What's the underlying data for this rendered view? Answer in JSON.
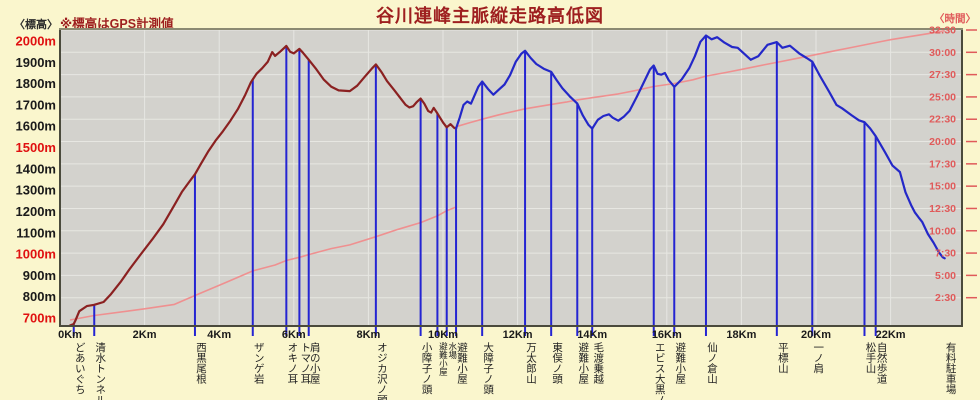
{
  "header": {
    "title": "谷川連峰主脈縦走路高低図",
    "elev_axis_label": "〈標高〉",
    "elev_note": "※標高はGPS計測値",
    "time_axis_label": "〈時間〉"
  },
  "colors": {
    "page_bg": "#FAF6CD",
    "plot_bg": "#D3D2CD",
    "grid": "#E7E7E2",
    "border": "#4A4A3C",
    "border_top": "#8B8A72",
    "title": "#9E1F1F",
    "elev_label_red": "#E01010",
    "elev_label_black": "#1A1A1A",
    "time_label": "#E05A5A",
    "day1_line": "#8B2121",
    "day2_line": "#2428C8",
    "marker_line": "#2424D2",
    "time_line": "#EF9090",
    "station_label": "#222222",
    "x_tick_label": "#1A1A1A"
  },
  "chart_data": {
    "type": "line",
    "title": "谷川連峰主脈縦走路高低図",
    "x_axis": {
      "unit": "Km",
      "tick_labels": [
        "0Km",
        "2Km",
        "4Km",
        "6Km",
        "8Km",
        "10Km",
        "12Km",
        "14Km",
        "16Km",
        "18Km",
        "20Km",
        "22Km"
      ],
      "tick_km": [
        0,
        2,
        4,
        6,
        8,
        10,
        12,
        14,
        16,
        18,
        20,
        22
      ],
      "km_max": 23.5
    },
    "elev_axis": {
      "side": "left",
      "unit": "m",
      "min": 700,
      "max": 2000,
      "step": 100,
      "red_values": [
        700,
        1000,
        1500,
        2000
      ]
    },
    "time_axis": {
      "side": "right",
      "tick_labels": [
        "2:30",
        "5:00",
        "7:30",
        "10:00",
        "12:30",
        "15:00",
        "17:30",
        "20:00",
        "22:30",
        "25:00",
        "27:30",
        "30:00",
        "32:30"
      ],
      "tick_minutes": [
        150,
        300,
        450,
        600,
        750,
        900,
        1050,
        1200,
        1350,
        1500,
        1650,
        1800,
        1950
      ]
    },
    "grid": true,
    "series": [
      {
        "name": "elevation-day1",
        "axis": "elev",
        "points": [
          [
            0,
            665
          ],
          [
            0.1,
            672
          ],
          [
            0.15,
            690
          ],
          [
            0.25,
            732
          ],
          [
            0.45,
            756
          ],
          [
            0.65,
            762
          ],
          [
            0.9,
            775
          ],
          [
            1.1,
            812
          ],
          [
            1.35,
            868
          ],
          [
            1.6,
            930
          ],
          [
            1.9,
            1000
          ],
          [
            2.2,
            1068
          ],
          [
            2.5,
            1140
          ],
          [
            2.8,
            1230
          ],
          [
            3.0,
            1292
          ],
          [
            3.2,
            1340
          ],
          [
            3.35,
            1375
          ],
          [
            3.5,
            1420
          ],
          [
            3.7,
            1480
          ],
          [
            3.9,
            1532
          ],
          [
            4.1,
            1576
          ],
          [
            4.3,
            1626
          ],
          [
            4.5,
            1680
          ],
          [
            4.7,
            1748
          ],
          [
            4.85,
            1806
          ],
          [
            4.9,
            1820
          ],
          [
            5.0,
            1846
          ],
          [
            5.15,
            1872
          ],
          [
            5.3,
            1902
          ],
          [
            5.42,
            1948
          ],
          [
            5.5,
            1930
          ],
          [
            5.65,
            1952
          ],
          [
            5.8,
            1977
          ],
          [
            5.9,
            1950
          ],
          [
            6.0,
            1942
          ],
          [
            6.15,
            1963
          ],
          [
            6.25,
            1944
          ],
          [
            6.4,
            1912
          ],
          [
            6.6,
            1868
          ],
          [
            6.8,
            1820
          ],
          [
            7.0,
            1786
          ],
          [
            7.2,
            1768
          ],
          [
            7.5,
            1765
          ],
          [
            7.7,
            1790
          ],
          [
            7.9,
            1832
          ],
          [
            8.1,
            1872
          ],
          [
            8.2,
            1890
          ],
          [
            8.35,
            1854
          ],
          [
            8.5,
            1812
          ],
          [
            8.7,
            1768
          ],
          [
            8.9,
            1722
          ],
          [
            9.0,
            1700
          ],
          [
            9.1,
            1688
          ],
          [
            9.2,
            1694
          ],
          [
            9.3,
            1714
          ],
          [
            9.4,
            1730
          ],
          [
            9.5,
            1706
          ],
          [
            9.6,
            1672
          ],
          [
            9.68,
            1664
          ],
          [
            9.75,
            1686
          ],
          [
            9.85,
            1660
          ],
          [
            10.0,
            1618
          ],
          [
            10.1,
            1595
          ],
          [
            10.2,
            1610
          ],
          [
            10.3,
            1592
          ],
          [
            10.35,
            1590
          ]
        ]
      },
      {
        "name": "elevation-day2",
        "axis": "elev",
        "points": [
          [
            10.35,
            1590
          ],
          [
            10.45,
            1642
          ],
          [
            10.55,
            1700
          ],
          [
            10.65,
            1716
          ],
          [
            10.75,
            1706
          ],
          [
            10.85,
            1746
          ],
          [
            10.95,
            1786
          ],
          [
            11.05,
            1810
          ],
          [
            11.2,
            1776
          ],
          [
            11.35,
            1748
          ],
          [
            11.5,
            1772
          ],
          [
            11.65,
            1796
          ],
          [
            11.8,
            1840
          ],
          [
            11.95,
            1902
          ],
          [
            12.1,
            1940
          ],
          [
            12.2,
            1954
          ],
          [
            12.35,
            1920
          ],
          [
            12.5,
            1892
          ],
          [
            12.7,
            1870
          ],
          [
            12.9,
            1855
          ],
          [
            13.05,
            1815
          ],
          [
            13.2,
            1778
          ],
          [
            13.4,
            1740
          ],
          [
            13.6,
            1706
          ],
          [
            13.75,
            1650
          ],
          [
            13.9,
            1606
          ],
          [
            14.0,
            1589
          ],
          [
            14.15,
            1630
          ],
          [
            14.3,
            1648
          ],
          [
            14.45,
            1656
          ],
          [
            14.55,
            1640
          ],
          [
            14.7,
            1626
          ],
          [
            14.85,
            1645
          ],
          [
            15.0,
            1672
          ],
          [
            15.2,
            1740
          ],
          [
            15.4,
            1812
          ],
          [
            15.55,
            1866
          ],
          [
            15.65,
            1885
          ],
          [
            15.75,
            1846
          ],
          [
            15.85,
            1842
          ],
          [
            15.95,
            1850
          ],
          [
            16.05,
            1816
          ],
          [
            16.2,
            1785
          ],
          [
            16.4,
            1820
          ],
          [
            16.6,
            1872
          ],
          [
            16.75,
            1928
          ],
          [
            16.9,
            1996
          ],
          [
            17.05,
            2026
          ],
          [
            17.2,
            2008
          ],
          [
            17.35,
            2018
          ],
          [
            17.55,
            1992
          ],
          [
            17.75,
            1972
          ],
          [
            17.9,
            1968
          ],
          [
            18.1,
            1936
          ],
          [
            18.25,
            1912
          ],
          [
            18.45,
            1928
          ],
          [
            18.7,
            1982
          ],
          [
            18.95,
            1995
          ],
          [
            19.1,
            1968
          ],
          [
            19.3,
            1978
          ],
          [
            19.55,
            1942
          ],
          [
            19.75,
            1920
          ],
          [
            19.9,
            1903
          ],
          [
            20.1,
            1838
          ],
          [
            20.35,
            1762
          ],
          [
            20.55,
            1700
          ],
          [
            20.7,
            1684
          ],
          [
            20.95,
            1652
          ],
          [
            21.15,
            1628
          ],
          [
            21.3,
            1619
          ],
          [
            21.45,
            1590
          ],
          [
            21.6,
            1553
          ],
          [
            21.85,
            1478
          ],
          [
            22.05,
            1415
          ],
          [
            22.25,
            1385
          ],
          [
            22.4,
            1290
          ],
          [
            22.55,
            1230
          ],
          [
            22.65,
            1196
          ],
          [
            22.75,
            1172
          ],
          [
            22.85,
            1150
          ],
          [
            23.0,
            1094
          ],
          [
            23.15,
            1054
          ],
          [
            23.3,
            1007
          ],
          [
            23.4,
            985
          ],
          [
            23.45,
            980
          ]
        ]
      },
      {
        "name": "elapsed-time",
        "axis": "time",
        "points": [
          [
            0,
            0
          ],
          [
            0.65,
            30
          ],
          [
            2,
            75
          ],
          [
            2.8,
            105
          ],
          [
            3.35,
            165
          ],
          [
            4.2,
            255
          ],
          [
            4.9,
            330
          ],
          [
            5.5,
            370
          ],
          [
            5.8,
            400
          ],
          [
            6.2,
            425
          ],
          [
            6.4,
            440
          ],
          [
            7.0,
            480
          ],
          [
            7.5,
            505
          ],
          [
            8.2,
            560
          ],
          [
            8.8,
            610
          ],
          [
            9.4,
            655
          ],
          [
            9.85,
            700
          ],
          [
            10.1,
            735
          ],
          [
            10.35,
            760
          ],
          [
            10.35,
            1300
          ],
          [
            10.7,
            1325
          ],
          [
            11.05,
            1350
          ],
          [
            11.5,
            1380
          ],
          [
            12.2,
            1420
          ],
          [
            12.9,
            1450
          ],
          [
            13.3,
            1465
          ],
          [
            13.6,
            1480
          ],
          [
            14.0,
            1495
          ],
          [
            14.7,
            1520
          ],
          [
            15.2,
            1545
          ],
          [
            15.65,
            1570
          ],
          [
            16.2,
            1590
          ],
          [
            16.7,
            1615
          ],
          [
            17.05,
            1640
          ],
          [
            17.6,
            1665
          ],
          [
            18.1,
            1690
          ],
          [
            18.6,
            1715
          ],
          [
            19.0,
            1735
          ],
          [
            19.5,
            1760
          ],
          [
            19.9,
            1780
          ],
          [
            20.5,
            1810
          ],
          [
            21.0,
            1835
          ],
          [
            21.3,
            1850
          ],
          [
            21.6,
            1865
          ],
          [
            22.0,
            1885
          ],
          [
            22.5,
            1905
          ],
          [
            23.0,
            1925
          ],
          [
            23.45,
            1945
          ]
        ]
      }
    ],
    "stations": [
      {
        "label": "どあいぐち",
        "km": 0.1,
        "elev": 672
      },
      {
        "label": "清水トンネル",
        "km": 0.65,
        "elev": 762
      },
      {
        "label": "西黒尾根",
        "km": 3.35,
        "elev": 1375
      },
      {
        "label": "ザンゲ岩",
        "km": 4.9,
        "elev": 1820
      },
      {
        "label": "オキノ耳",
        "km": 5.8,
        "elev": 1977
      },
      {
        "label": "トマノ耳",
        "km": 6.15,
        "elev": 1963
      },
      {
        "label": "肩の小屋",
        "km": 6.4,
        "elev": 1912
      },
      {
        "label": "オジカ沢ノ頭",
        "km": 8.2,
        "elev": 1890
      },
      {
        "label": "小障子ノ頭",
        "km": 9.4,
        "elev": 1730
      },
      {
        "label": "避難小屋",
        "km": 9.85,
        "elev": 1660,
        "small": true
      },
      {
        "label": "水場",
        "km": 10.1,
        "elev": 1595,
        "small": true
      },
      {
        "label": "避難小屋",
        "km": 10.35,
        "elev": 1590
      },
      {
        "label": "大障子ノ頭",
        "km": 11.05,
        "elev": 1810
      },
      {
        "label": "万太郎山",
        "km": 12.2,
        "elev": 1954
      },
      {
        "label": "東俣ノ頭",
        "km": 12.9,
        "elev": 1855
      },
      {
        "label": "避難小屋",
        "km": 13.6,
        "elev": 1706
      },
      {
        "label": "毛渡乗越",
        "km": 14.0,
        "elev": 1589
      },
      {
        "label": "エビス大黒ノ頭",
        "km": 15.65,
        "elev": 1885
      },
      {
        "label": "避難小屋",
        "km": 16.2,
        "elev": 1785
      },
      {
        "label": "仙ノ倉山",
        "km": 17.05,
        "elev": 2026
      },
      {
        "label": "平標山",
        "km": 18.95,
        "elev": 1995
      },
      {
        "label": "一ノ肩",
        "km": 19.9,
        "elev": 1903
      },
      {
        "label": "松手山",
        "km": 21.3,
        "elev": 1619
      },
      {
        "label": "自然歩道",
        "km": 21.6,
        "elev": 1553
      },
      {
        "label": "有料駐車場",
        "km": 23.45,
        "elev": 980,
        "marker": false
      }
    ]
  }
}
